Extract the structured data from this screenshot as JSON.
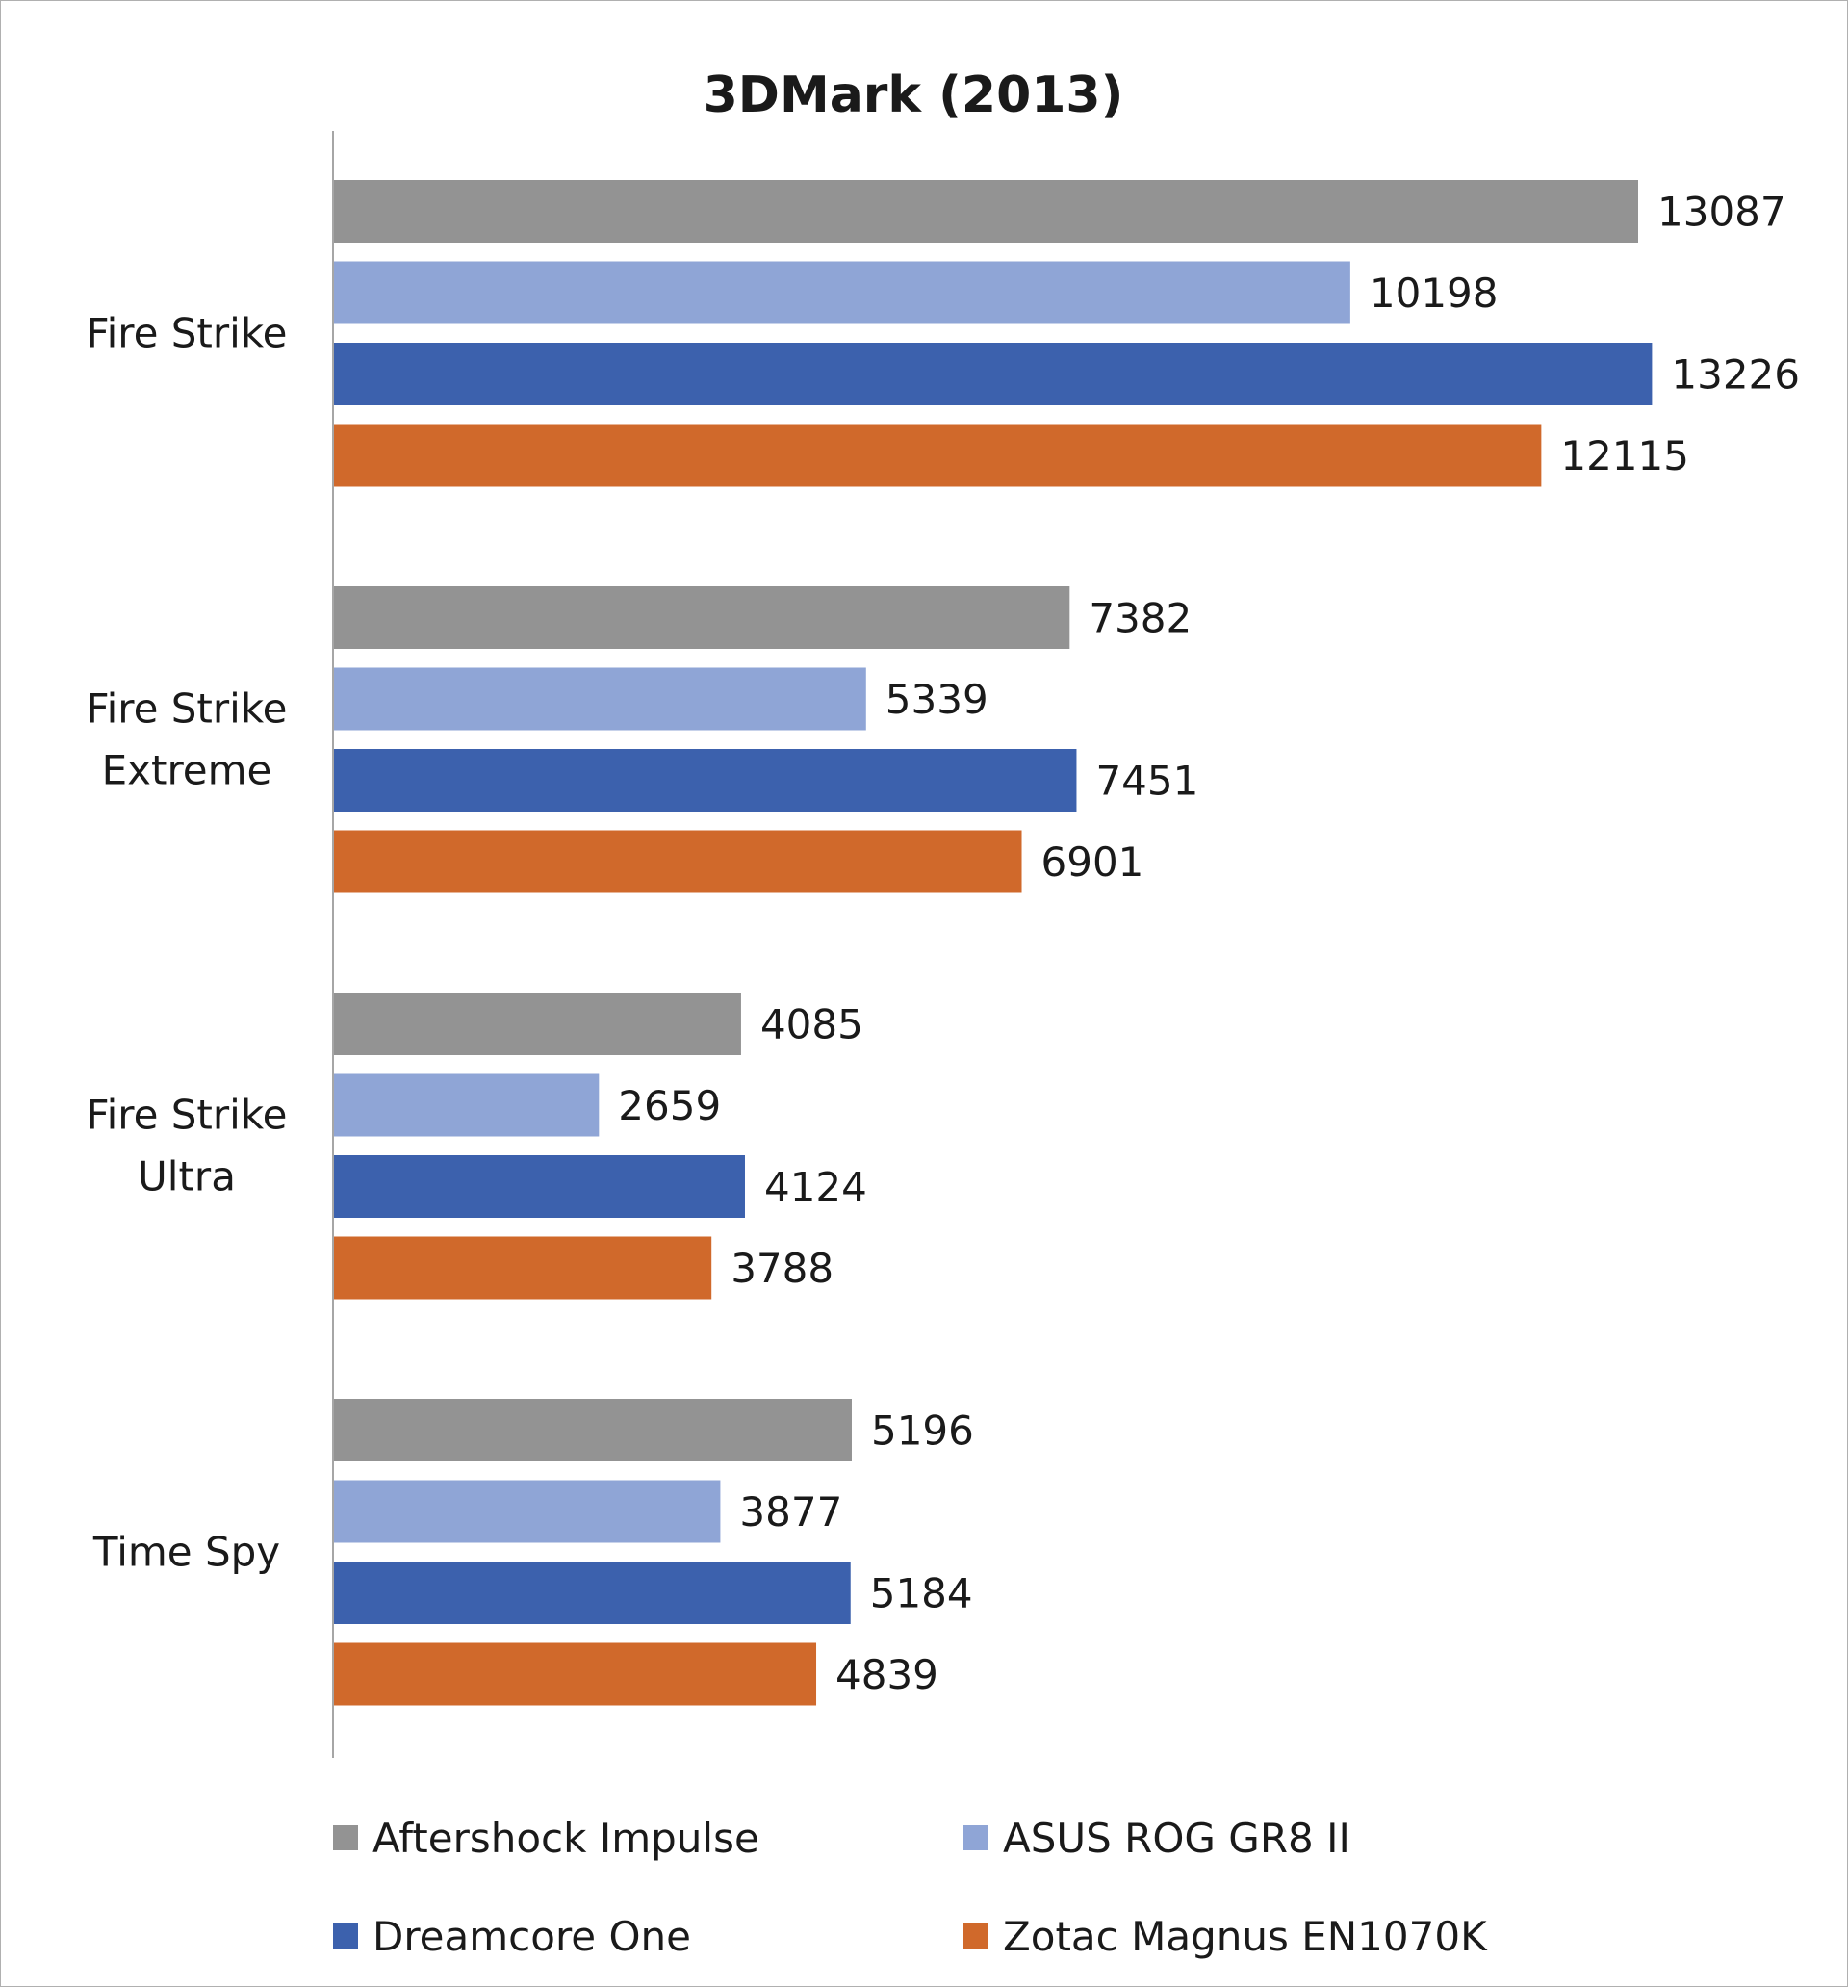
{
  "chart_data": {
    "type": "bar",
    "orientation": "horizontal",
    "title": "3DMark (2013)",
    "xlabel": "",
    "ylabel": "",
    "categories": [
      [
        "Fire Strike"
      ],
      [
        "Fire Strike",
        "Extreme"
      ],
      [
        "Fire Strike",
        "Ultra"
      ],
      [
        "Time Spy"
      ]
    ],
    "series": [
      {
        "name": "Aftershock Impulse",
        "color": "#939393",
        "values": [
          13087,
          7382,
          4085,
          5196
        ]
      },
      {
        "name": "ASUS ROG GR8 II",
        "color": "#8fa5d6",
        "values": [
          10198,
          5339,
          2659,
          3877
        ]
      },
      {
        "name": "Dreamcore One",
        "color": "#3c61ad",
        "values": [
          13226,
          7451,
          4124,
          5184
        ]
      },
      {
        "name": "Zotac Magnus EN1070K",
        "color": "#d0692b",
        "values": [
          12115,
          6901,
          3788,
          4839
        ]
      }
    ],
    "xlim": [
      0,
      14000
    ],
    "grid": false,
    "axis_line_color": "#a6a6a6",
    "data_labels": true,
    "legend": "bottom"
  }
}
